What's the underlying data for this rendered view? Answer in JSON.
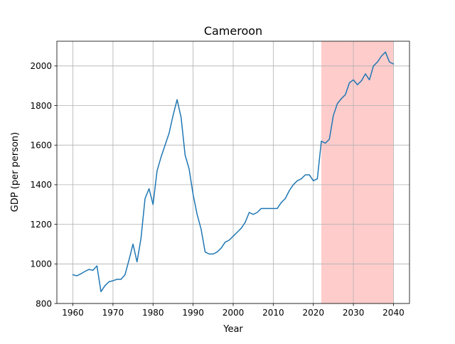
{
  "chart_data": {
    "type": "line",
    "title": "Cameroon",
    "xlabel": "Year",
    "ylabel": "GDP (per person)",
    "xlim": [
      1956.0,
      2044.0
    ],
    "ylim": [
      800,
      2125
    ],
    "xticks": [
      1960,
      1970,
      1980,
      1990,
      2000,
      2010,
      2020,
      2030,
      2040
    ],
    "yticks": [
      800,
      1000,
      1200,
      1400,
      1600,
      1800,
      2000
    ],
    "grid": true,
    "legend": "none",
    "highlight": {
      "x_start": 2022,
      "x_end": 2040,
      "color": "#ffcccc"
    },
    "series": [
      {
        "color": "#1f77b4",
        "x": [
          1960,
          1961,
          1962,
          1963,
          1964,
          1965,
          1966,
          1967,
          1968,
          1969,
          1970,
          1971,
          1972,
          1973,
          1974,
          1975,
          1976,
          1977,
          1978,
          1979,
          1980,
          1981,
          1982,
          1983,
          1984,
          1985,
          1986,
          1987,
          1988,
          1989,
          1990,
          1991,
          1992,
          1993,
          1994,
          1995,
          1996,
          1997,
          1998,
          1999,
          2000,
          2001,
          2002,
          2003,
          2004,
          2005,
          2006,
          2007,
          2008,
          2009,
          2010,
          2011,
          2012,
          2013,
          2014,
          2015,
          2016,
          2017,
          2018,
          2019,
          2020,
          2021,
          2022,
          2023,
          2024,
          2025,
          2026,
          2027,
          2028,
          2029,
          2030,
          2031,
          2032,
          2033,
          2034,
          2035,
          2036,
          2037,
          2038,
          2039,
          2040
        ],
        "y": [
          945,
          940,
          950,
          962,
          972,
          968,
          990,
          860,
          890,
          910,
          915,
          922,
          922,
          945,
          1020,
          1100,
          1010,
          1130,
          1330,
          1380,
          1300,
          1470,
          1540,
          1600,
          1660,
          1750,
          1830,
          1740,
          1550,
          1480,
          1350,
          1250,
          1175,
          1060,
          1050,
          1050,
          1060,
          1080,
          1110,
          1120,
          1140,
          1160,
          1180,
          1210,
          1260,
          1250,
          1260,
          1280,
          1280,
          1280,
          1280,
          1280,
          1310,
          1330,
          1370,
          1400,
          1420,
          1430,
          1450,
          1450,
          1420,
          1430,
          1620,
          1610,
          1630,
          1750,
          1810,
          1835,
          1855,
          1915,
          1930,
          1905,
          1925,
          1960,
          1930,
          2000,
          2020,
          2050,
          2070,
          2020,
          2010
        ]
      }
    ]
  }
}
